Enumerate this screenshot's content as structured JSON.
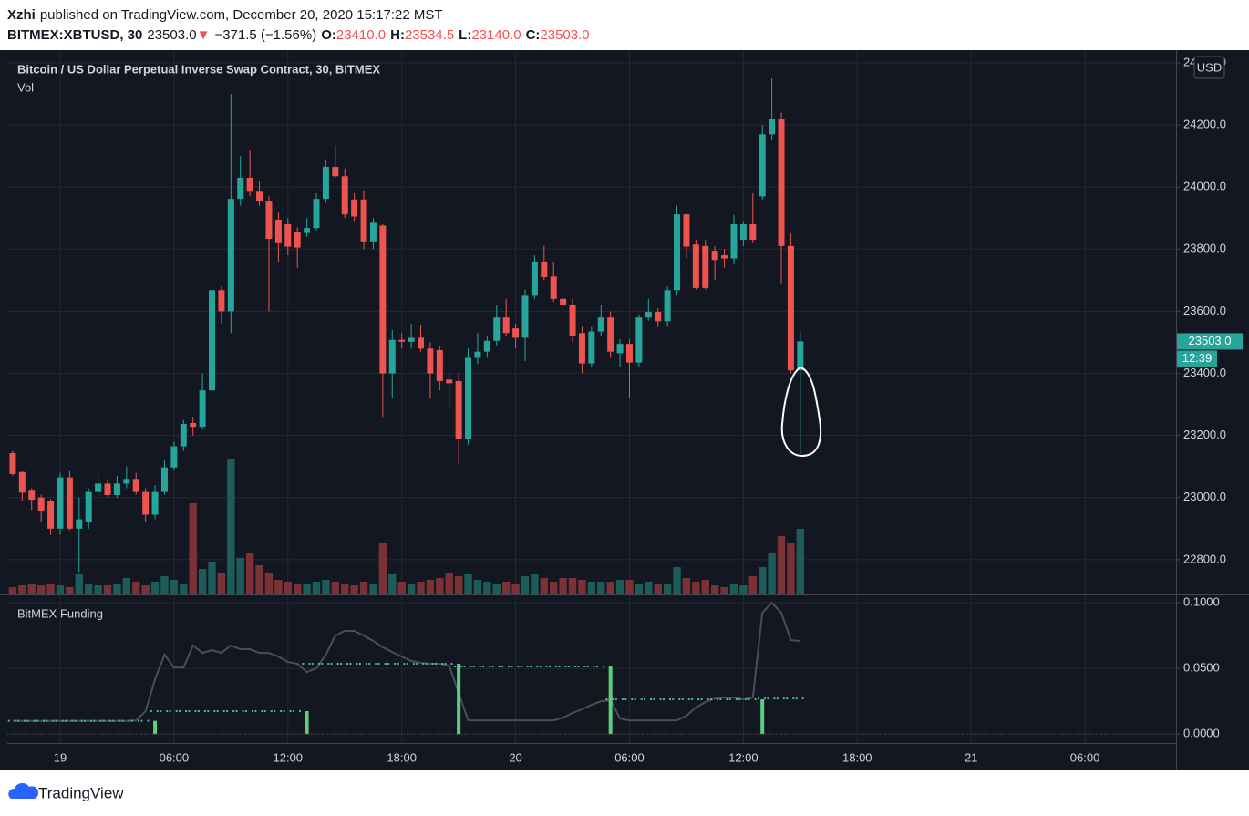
{
  "header": {
    "author": "Xzhi",
    "published": "published on TradingView.com, December 20, 2020 15:17:22 MST",
    "symbol": "BITMEX:XBTUSD, 30",
    "last": "23503.0",
    "change_arrow": "▼",
    "change": "−371.5 (−1.56%)",
    "open_label": "O:",
    "open": "23410.0",
    "high_label": "H:",
    "high": "23534.5",
    "low_label": "L:",
    "low": "23140.0",
    "close_label": "C:",
    "close": "23503.0"
  },
  "footer": {
    "brand": "TradingView"
  },
  "chart_data": [
    {
      "type": "candlestick",
      "title": "Bitcoin / US Dollar Perpetual Inverse Swap Contract, 30, BITMEX",
      "volume_label": "Vol",
      "currency": "USD",
      "up_color": "#26a69a",
      "down_color": "#ef5350",
      "volume_up_color": "#1c5c59",
      "volume_down_color": "#7b3236",
      "grid": true,
      "xlim": [
        -0.57,
        122.6
      ],
      "xticks": [
        {
          "value": 5,
          "label": "19"
        },
        {
          "value": 17,
          "label": "06:00"
        },
        {
          "value": 29,
          "label": "12:00"
        },
        {
          "value": 41,
          "label": "18:00"
        },
        {
          "value": 53,
          "label": "20"
        },
        {
          "value": 65,
          "label": "06:00"
        },
        {
          "value": 77,
          "label": "12:00"
        },
        {
          "value": 89,
          "label": "18:00"
        },
        {
          "value": 101,
          "label": "21"
        },
        {
          "value": 113,
          "label": "06:00"
        }
      ],
      "ylim": [
        22688,
        24441
      ],
      "yticks": [
        {
          "value": 22800,
          "label": "22800.0"
        },
        {
          "value": 23000,
          "label": "23000.0"
        },
        {
          "value": 23200,
          "label": "23200.0"
        },
        {
          "value": 23400,
          "label": "23400.0"
        },
        {
          "value": 23600,
          "label": "23600.0"
        },
        {
          "value": 23800,
          "label": "23800.0"
        },
        {
          "value": 24000,
          "label": "24000.0"
        },
        {
          "value": 24200,
          "label": "24200.0"
        },
        {
          "value": 24400,
          "label": "24400.0"
        }
      ],
      "last_price": {
        "value": 23503,
        "label": "23503.0"
      },
      "countdown": "12:39",
      "open": [
        23143,
        23082,
        23025,
        23000,
        22990,
        22900,
        23065,
        22900,
        22922,
        23018,
        23045,
        23008,
        23045,
        23060,
        23018,
        22945,
        23018,
        23097,
        23165,
        23240,
        23228,
        23345,
        23668,
        23600,
        23962,
        24030,
        23985,
        23955,
        23895,
        23880,
        23855,
        23852,
        23868,
        23962,
        24065,
        24035,
        23960,
        23960,
        23825,
        23876,
        23400,
        23508,
        23502,
        23515,
        23480,
        23475,
        23380,
        23375,
        23190,
        23450,
        23470,
        23505,
        23580,
        23545,
        23515,
        23650,
        23760,
        23712,
        23640,
        23620,
        23530,
        23432,
        23535,
        23580,
        23465,
        23495,
        23435,
        23580,
        23598,
        23568,
        23668,
        23912,
        23815,
        23810,
        23795,
        23780,
        23770,
        23830,
        23880,
        23970,
        24170,
        24220,
        23810,
        23410
      ],
      "high": [
        23150,
        23085,
        23030,
        23010,
        22995,
        23080,
        23085,
        23000,
        23030,
        23080,
        23060,
        23070,
        23100,
        23080,
        23030,
        23040,
        23120,
        23180,
        23250,
        23260,
        23400,
        23680,
        23680,
        24300,
        24100,
        24120,
        24020,
        23970,
        23920,
        23900,
        23870,
        23900,
        23980,
        24090,
        24135,
        24060,
        23980,
        23990,
        23900,
        23880,
        23540,
        23530,
        23560,
        23555,
        23500,
        23490,
        23400,
        23400,
        23480,
        23530,
        23520,
        23620,
        23640,
        23560,
        23670,
        23780,
        23810,
        23760,
        23660,
        23640,
        23550,
        23550,
        23620,
        23600,
        23510,
        23510,
        23590,
        23640,
        23610,
        23680,
        23940,
        23915,
        23830,
        23830,
        23810,
        23800,
        23910,
        23890,
        23980,
        24200,
        24350,
        24240,
        23850,
        23534.5
      ],
      "low": [
        23070,
        22990,
        22960,
        22920,
        22880,
        22880,
        22895,
        22760,
        22900,
        23000,
        23000,
        23000,
        23030,
        23010,
        22920,
        22930,
        23010,
        23090,
        23150,
        23200,
        23220,
        23320,
        23560,
        23530,
        23940,
        23970,
        23940,
        23600,
        23760,
        23780,
        23740,
        23840,
        23860,
        23950,
        24030,
        23900,
        23890,
        23800,
        23800,
        23260,
        23320,
        23480,
        23480,
        23470,
        23320,
        23345,
        23290,
        23110,
        23170,
        23430,
        23450,
        23490,
        23520,
        23480,
        23440,
        23640,
        23700,
        23630,
        23600,
        23500,
        23400,
        23420,
        23520,
        23450,
        23420,
        23320,
        23420,
        23570,
        23550,
        23550,
        23650,
        23770,
        23670,
        23670,
        23700,
        23740,
        23750,
        23810,
        23820,
        23960,
        24150,
        23690,
        23400,
        23140
      ],
      "close": [
        23076,
        23016,
        22993,
        22955,
        22900,
        23065,
        22900,
        22930,
        23018,
        23045,
        23008,
        23045,
        23060,
        23018,
        22945,
        23018,
        23097,
        23165,
        23237,
        23228,
        23345,
        23668,
        23600,
        23962,
        24030,
        23985,
        23955,
        23833,
        23822,
        23808,
        23805,
        23868,
        23962,
        24065,
        24035,
        23912,
        23905,
        23825,
        23885,
        23400,
        23508,
        23502,
        23515,
        23480,
        23400,
        23375,
        23368,
        23190,
        23450,
        23470,
        23505,
        23580,
        23530,
        23515,
        23650,
        23760,
        23710,
        23640,
        23620,
        23520,
        23432,
        23535,
        23580,
        23470,
        23495,
        23435,
        23580,
        23598,
        23568,
        23668,
        23912,
        23808,
        23675,
        23675,
        23765,
        23770,
        23880,
        23880,
        23830,
        24170,
        24220,
        23810,
        23410,
        23503
      ],
      "volume": [
        8,
        10,
        12,
        10,
        12,
        10,
        8,
        22,
        12,
        10,
        10,
        12,
        18,
        14,
        10,
        14,
        20,
        16,
        12,
        100,
        28,
        36,
        24,
        149,
        40,
        46,
        32,
        24,
        16,
        14,
        12,
        12,
        14,
        16,
        14,
        12,
        10,
        14,
        12,
        56,
        22,
        14,
        12,
        14,
        16,
        18,
        24,
        20,
        22,
        16,
        14,
        12,
        14,
        12,
        20,
        22,
        18,
        14,
        18,
        18,
        16,
        14,
        14,
        14,
        16,
        16,
        12,
        14,
        12,
        12,
        30,
        18,
        14,
        16,
        10,
        8,
        12,
        10,
        20,
        30,
        46,
        64,
        56,
        72
      ]
    },
    {
      "type": "line",
      "title": "BitMEX Funding",
      "grid": true,
      "ylim": [
        -0.0069,
        0.1063
      ],
      "yticks": [
        {
          "value": 0,
          "label": "0.0000"
        },
        {
          "value": 0.05,
          "label": "0.0500"
        },
        {
          "value": 0.1,
          "label": "0.1000"
        }
      ],
      "series": [
        {
          "style": "line",
          "color": "#4a4e58",
          "values": [
            0.01,
            0.01,
            0.01,
            0.01,
            0.01,
            0.01,
            0.01,
            0.01,
            0.01,
            0.01,
            0.01,
            0.01,
            0.01,
            0.0104,
            0.0174,
            0.0417,
            0.0604,
            0.0507,
            0.0507,
            0.0674,
            0.0618,
            0.0639,
            0.0618,
            0.0674,
            0.0646,
            0.0646,
            0.0618,
            0.0618,
            0.059,
            0.0549,
            0.0535,
            0.0472,
            0.05,
            0.0604,
            0.075,
            0.0785,
            0.0785,
            0.075,
            0.0708,
            0.066,
            0.0625,
            0.059,
            0.0556,
            0.0542,
            0.0535,
            0.0535,
            0.0521,
            0.0313,
            0.0104,
            0.0104,
            0.0104,
            0.0104,
            0.0104,
            0.0104,
            0.0104,
            0.0104,
            0.0104,
            0.0104,
            0.0125,
            0.016,
            0.0188,
            0.0222,
            0.025,
            0.0257,
            0.0118,
            0.0104,
            0.0104,
            0.0104,
            0.0104,
            0.0104,
            0.0104,
            0.0139,
            0.0201,
            0.0243,
            0.0271,
            0.0278,
            0.0278,
            0.0264,
            0.0278,
            0.0924,
            0.1,
            0.0924,
            0.0715,
            0.0708
          ]
        },
        {
          "style": "dotted",
          "color": "#4db6ac",
          "values": [
            0.01,
            0.01,
            0.01,
            0.01,
            0.01,
            0.01,
            0.01,
            0.01,
            0.01,
            0.01,
            0.01,
            0.01,
            0.01,
            0.01,
            0.01,
            0.0174,
            0.0174,
            0.0174,
            0.0174,
            0.0174,
            0.0174,
            0.0174,
            0.0174,
            0.0174,
            0.0174,
            0.0174,
            0.0174,
            0.0174,
            0.0174,
            0.0174,
            0.0174,
            0.0535,
            0.0535,
            0.0535,
            0.0535,
            0.0535,
            0.0535,
            0.0535,
            0.0535,
            0.0535,
            0.0535,
            0.0535,
            0.0535,
            0.0535,
            0.0535,
            0.0535,
            0.0535,
            0.0514,
            0.0514,
            0.0514,
            0.0514,
            0.0514,
            0.0514,
            0.0514,
            0.0514,
            0.0514,
            0.0514,
            0.0514,
            0.0514,
            0.0514,
            0.0514,
            0.0514,
            0.0514,
            0.0264,
            0.0264,
            0.0264,
            0.0264,
            0.0264,
            0.0264,
            0.0264,
            0.0264,
            0.0264,
            0.0264,
            0.0264,
            0.0264,
            0.0264,
            0.0264,
            0.0264,
            0.0264,
            0.027,
            0.027,
            0.027,
            0.027,
            0.027
          ]
        },
        {
          "style": "columns",
          "color": "#5bd07e",
          "values": [
            null,
            null,
            null,
            null,
            null,
            null,
            null,
            null,
            null,
            null,
            null,
            null,
            null,
            null,
            null,
            0.01,
            null,
            null,
            null,
            null,
            null,
            null,
            null,
            null,
            null,
            null,
            null,
            null,
            null,
            null,
            null,
            0.0174,
            null,
            null,
            null,
            null,
            null,
            null,
            null,
            null,
            null,
            null,
            null,
            null,
            null,
            null,
            null,
            0.0535,
            null,
            null,
            null,
            null,
            null,
            null,
            null,
            null,
            null,
            null,
            null,
            null,
            null,
            null,
            null,
            0.0514,
            null,
            null,
            null,
            null,
            null,
            null,
            null,
            null,
            null,
            null,
            null,
            null,
            null,
            null,
            null,
            0.0264,
            null,
            null,
            null,
            null
          ]
        }
      ]
    }
  ]
}
